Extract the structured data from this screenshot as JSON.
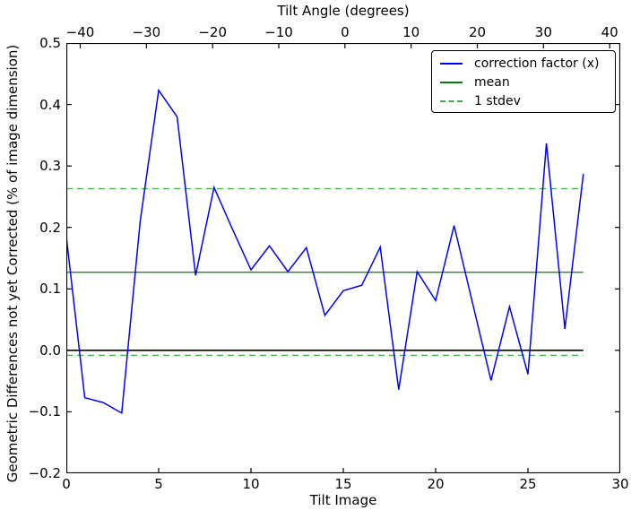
{
  "chart_data": {
    "type": "line",
    "x_axis": {
      "label": "Tilt Image",
      "range": [
        0,
        30
      ],
      "ticks": [
        0,
        5,
        10,
        15,
        20,
        25,
        30
      ],
      "tick_labels": [
        "0",
        "5",
        "10",
        "15",
        "20",
        "25",
        "30"
      ]
    },
    "top_axis": {
      "title": "Tilt Angle (degrees)",
      "range": [
        -42.1,
        41.6
      ],
      "ticks": [
        -40,
        -30,
        -20,
        -10,
        0,
        10,
        20,
        30,
        40
      ],
      "tick_labels": [
        "−40",
        "−30",
        "−20",
        "−10",
        "0",
        "10",
        "20",
        "30",
        "40"
      ]
    },
    "y_axis": {
      "label": "Geometric Differences not yet Corrected (% of image dimension)",
      "range": [
        -0.2,
        0.5
      ],
      "ticks": [
        0.5,
        0.4,
        0.3,
        0.2,
        0.1,
        0.0,
        -0.1,
        -0.2
      ],
      "tick_labels": [
        "0.5",
        "0.4",
        "0.3",
        "0.2",
        "0.1",
        "0.0",
        "−0.1",
        "−0.2"
      ]
    },
    "grid": false,
    "series": [
      {
        "name": "correction factor (x)",
        "color": "#0000ff",
        "style": "solid",
        "x": [
          0,
          1,
          2,
          3,
          4,
          5,
          6,
          7,
          8,
          9,
          10,
          11,
          12,
          13,
          14,
          15,
          16,
          17,
          18,
          19,
          20,
          21,
          22,
          23,
          24,
          25,
          26,
          27,
          28
        ],
        "y": [
          0.185,
          -0.077,
          -0.085,
          -0.102,
          0.21,
          0.423,
          0.38,
          0.122,
          0.265,
          0.197,
          0.131,
          0.17,
          0.128,
          0.167,
          0.057,
          0.097,
          0.106,
          0.168,
          -0.064,
          0.128,
          0.081,
          0.203,
          0.077,
          -0.049,
          0.071,
          -0.039,
          0.337,
          0.035,
          0.287
        ]
      }
    ],
    "reference_lines": [
      {
        "name": "zero",
        "value": 0.0,
        "color": "#000000",
        "style": "solid",
        "x_span": [
          0,
          28
        ]
      },
      {
        "name": "mean",
        "value": 0.127,
        "color": "#008000",
        "style": "solid",
        "x_span": [
          0,
          28
        ]
      },
      {
        "name": "stdev-upper",
        "value": 0.263,
        "color": "#44aa44",
        "style": "dashed",
        "x_span": [
          0,
          28
        ]
      },
      {
        "name": "stdev-lower",
        "value": -0.008,
        "color": "#44aa44",
        "style": "dashed",
        "x_span": [
          0,
          28
        ]
      }
    ],
    "legend": {
      "position": "upper right",
      "items": [
        {
          "label": "correction factor (x)",
          "color": "#0000ff",
          "style": "solid"
        },
        {
          "label": "mean",
          "color": "#008000",
          "style": "solid"
        },
        {
          "label": "1 stdev",
          "color": "#44aa44",
          "style": "dashed"
        }
      ]
    }
  }
}
